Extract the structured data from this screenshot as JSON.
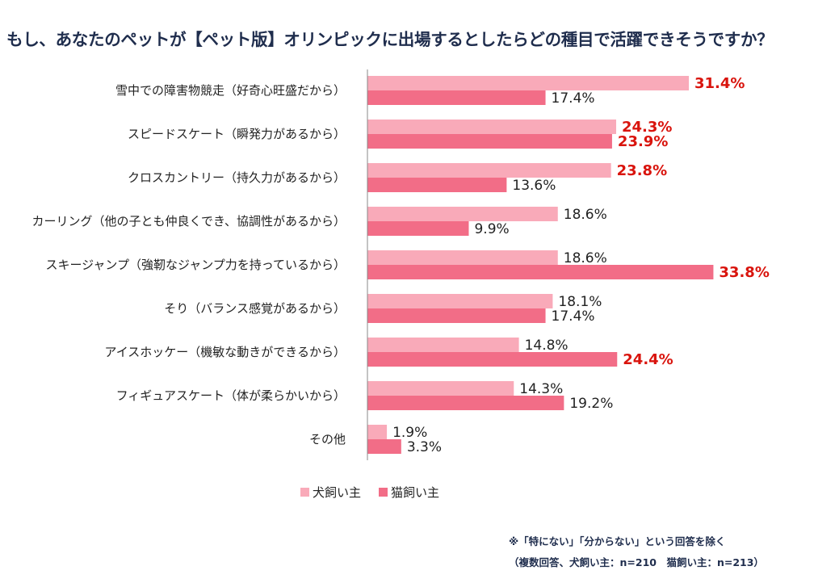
{
  "title": "もし、あなたのペットが【ペット版】オリンピックに出場するとしたらどの種目で活躍できそうですか？",
  "colors": {
    "dog": "#f9aab9",
    "cat": "#f26d87",
    "highlight_text": "#d9140d",
    "normal_text": "#222222",
    "axis": "#888888"
  },
  "chart_data": {
    "type": "bar",
    "orientation": "horizontal",
    "unit": "%",
    "xlim": [
      0,
      35
    ],
    "grid": false,
    "legend_position": "bottom",
    "categories": [
      "雪中での障害物競走（好奇心旺盛だから）",
      "スピードスケート（瞬発力があるから）",
      "クロスカントリー（持久力があるから）",
      "カーリング（他の子とも仲良くでき、協調性があるから）",
      "スキージャンプ（強靭なジャンプ力を持っているから）",
      "そり（バランス感覚があるから）",
      "アイスホッケー（機敏な動きができるから）",
      "フィギュアスケート（体が柔らかいから）",
      "その他"
    ],
    "series": [
      {
        "name": "犬飼い主",
        "values": [
          31.4,
          24.3,
          23.8,
          18.6,
          18.6,
          18.1,
          14.8,
          14.3,
          1.9
        ],
        "labels": [
          "31.4%",
          "24.3%",
          "23.8%",
          "18.6%",
          "18.6%",
          "18.1%",
          "14.8%",
          "14.3%",
          "1.9%"
        ],
        "highlight": [
          true,
          true,
          true,
          false,
          false,
          false,
          false,
          false,
          false
        ]
      },
      {
        "name": "猫飼い主",
        "values": [
          17.4,
          23.9,
          13.6,
          9.9,
          33.8,
          17.4,
          24.4,
          19.2,
          3.3
        ],
        "labels": [
          "17.4%",
          "23.9%",
          "13.6%",
          "9.9%",
          "33.8%",
          "17.4%",
          "24.4%",
          "19.2%",
          "3.3%"
        ],
        "highlight": [
          false,
          true,
          false,
          false,
          true,
          false,
          true,
          false,
          false
        ]
      }
    ]
  },
  "legend": {
    "dog_label": "犬飼い主",
    "cat_label": "猫飼い主"
  },
  "notes": {
    "line1": "※「特にない」「分からない」という回答を除く",
    "line2": "（複数回答、犬飼い主：n=210　猫飼い主：n=213）"
  }
}
